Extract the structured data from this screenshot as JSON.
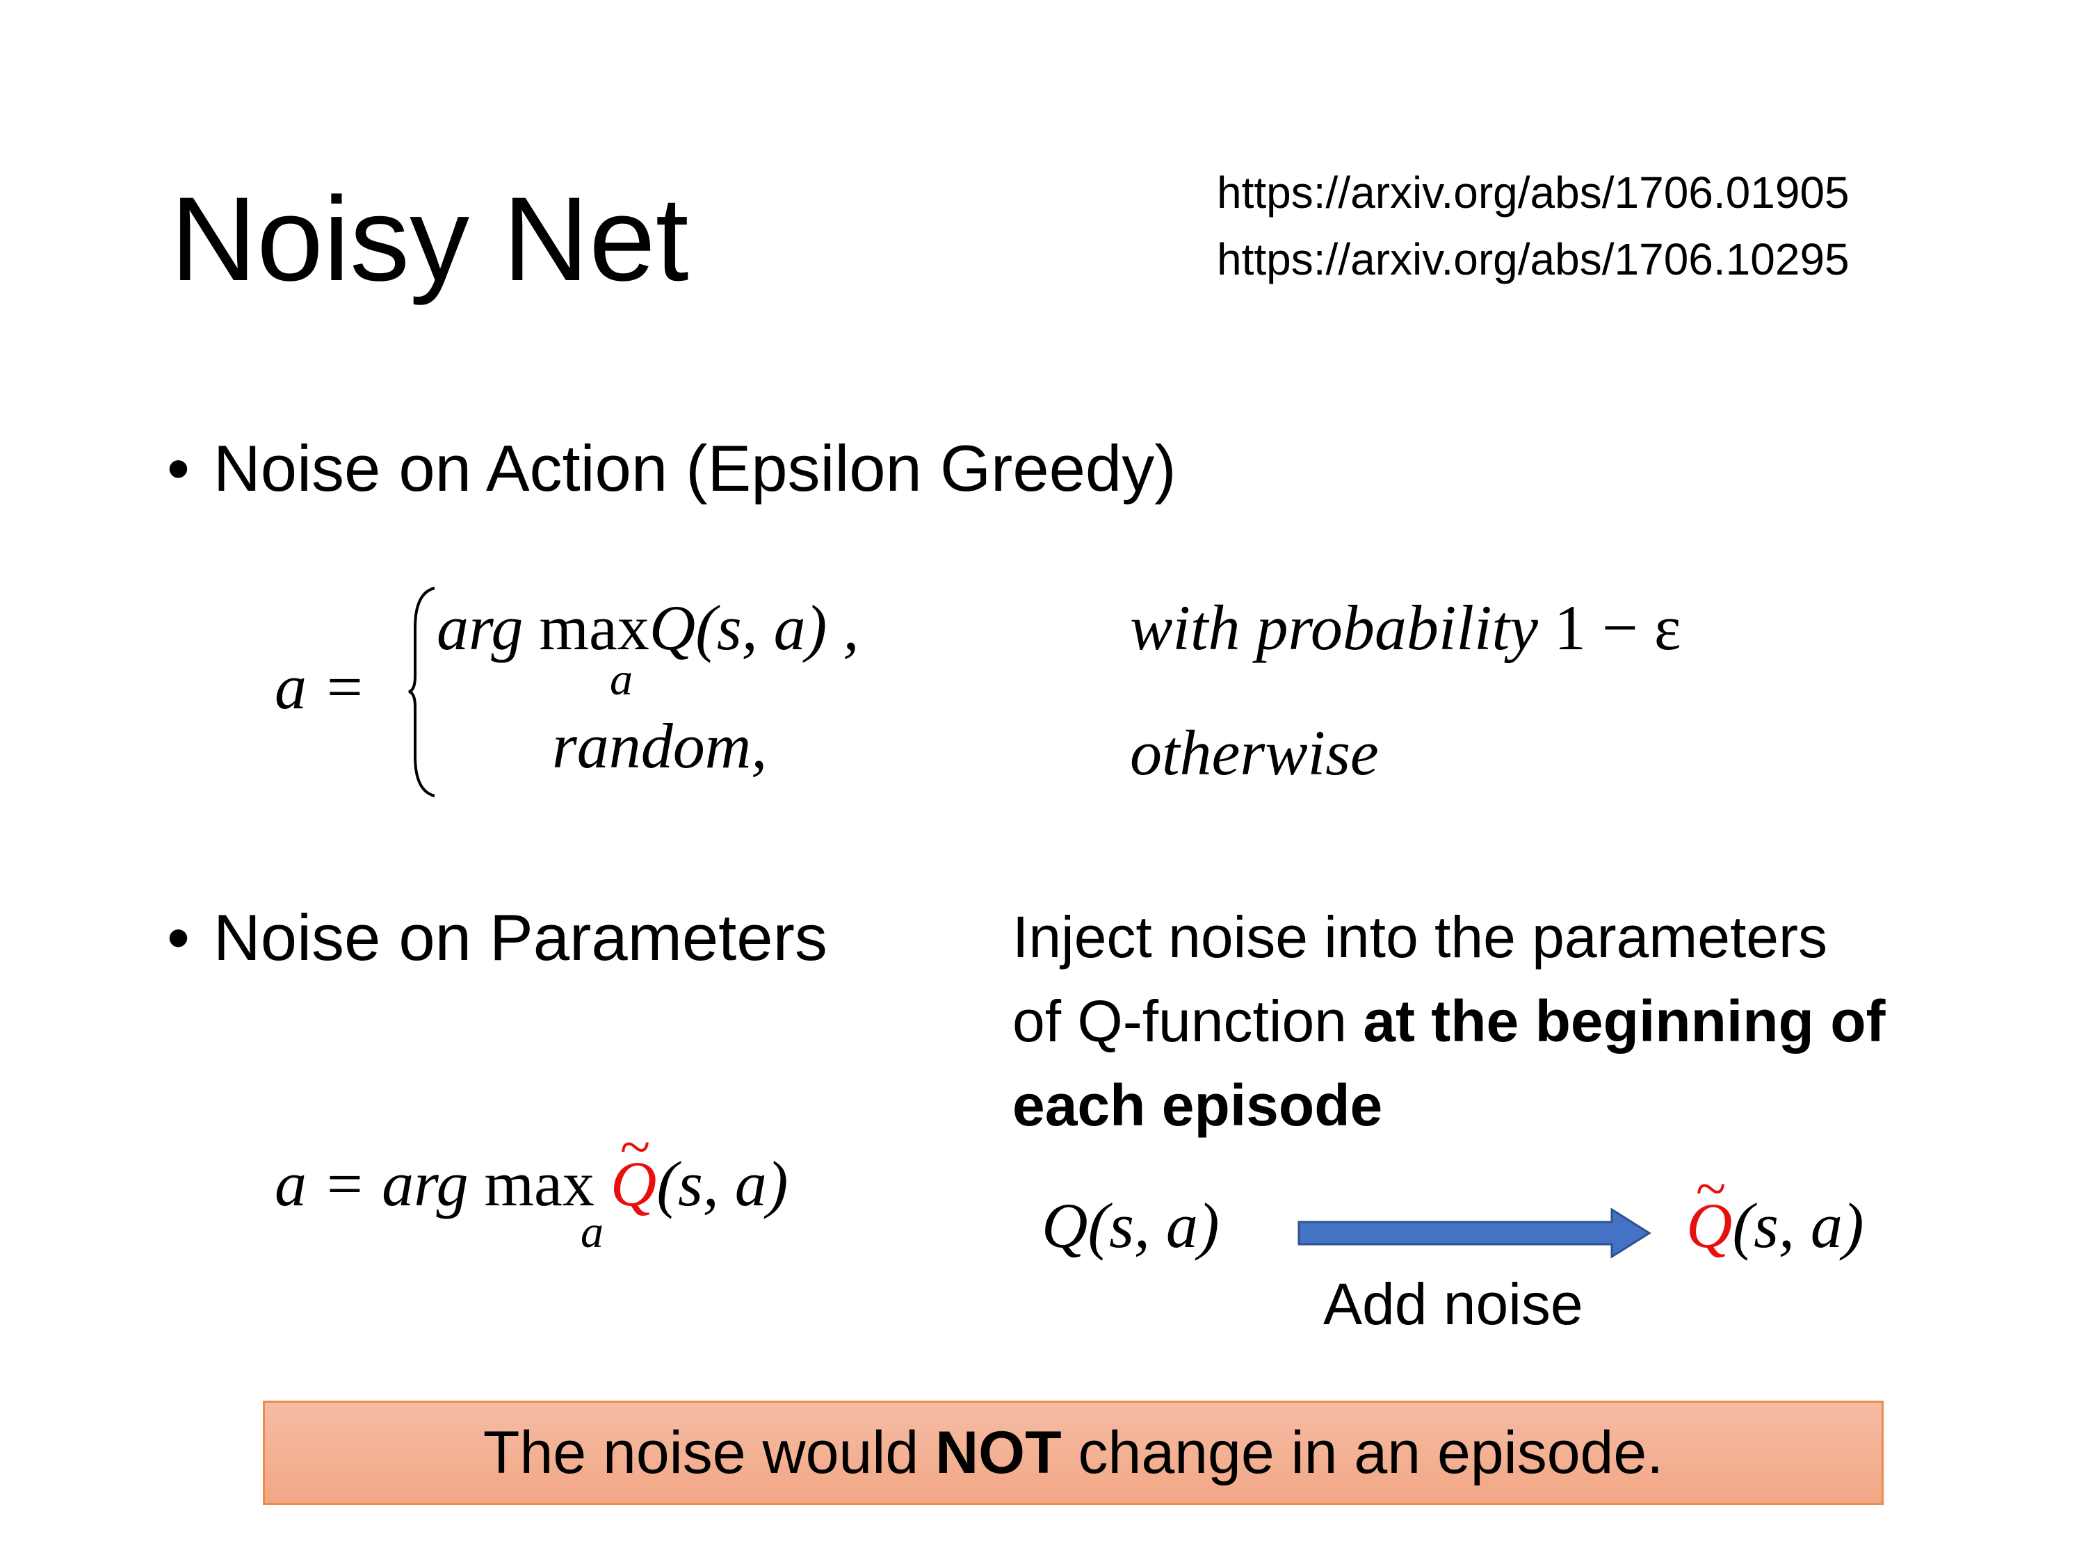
{
  "title": "Noisy Net",
  "references": [
    "https://arxiv.org/abs/1706.01905",
    "https://arxiv.org/abs/1706.10295"
  ],
  "bullets": [
    {
      "label": "Noise on Action (Epsilon Greedy)"
    },
    {
      "label": "Noise on Parameters"
    }
  ],
  "equation_action": {
    "lhs": "a =",
    "case1": {
      "arg": "arg",
      "max": "max",
      "sub": "a",
      "func": "Q(s, a) ,",
      "condition": "with probability",
      "value": "1 − ε"
    },
    "case2": {
      "expr": "random,",
      "condition": "otherwise"
    }
  },
  "description": {
    "line1": "Inject noise into the parameters",
    "line2_normal": "of Q-function ",
    "line2_bold": "at the beginning of",
    "line3_bold": "each episode"
  },
  "equation_param": {
    "lhs": "a = arg",
    "max": "max",
    "sub": "a",
    "q": "Q",
    "args": "(s, a)"
  },
  "diagram": {
    "from_q": "Q",
    "from_args": "(s, a)",
    "to_q": "Q",
    "to_args": "(s, a)",
    "arrow_label": "Add noise",
    "arrow_color": "#4472c4",
    "noisy_color": "#e8100f"
  },
  "note": {
    "before": "The noise would ",
    "bold": "NOT",
    "after": " change in an episode.",
    "fill": "#f4b094",
    "border": "#ed8a4e"
  }
}
